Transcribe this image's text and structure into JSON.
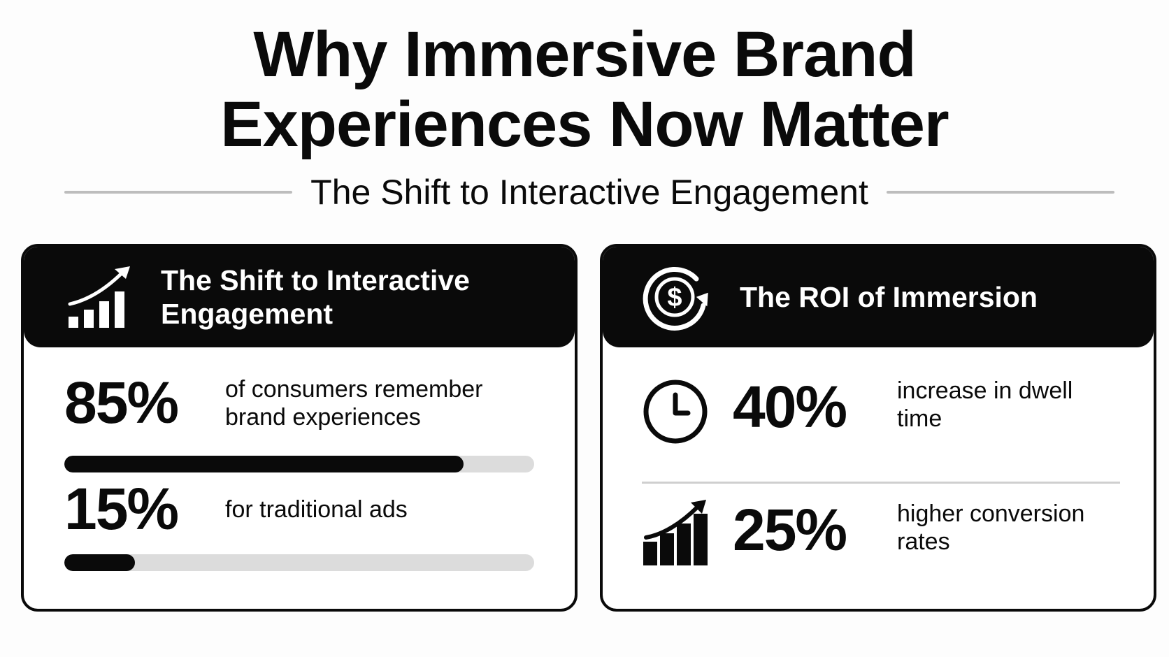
{
  "title": {
    "line1": "Why Immersive Brand",
    "line2": "Experiences Now Matter"
  },
  "subtitle": "The Shift to Interactive Engagement",
  "left_card": {
    "heading": "The Shift to Interactive Engagement",
    "icon": "bar-chart-trend-up-icon",
    "stats": [
      {
        "value": "85%",
        "description": "of consumers remember brand experiences",
        "bar_fraction": 0.85
      },
      {
        "value": "15%",
        "description": "for traditional ads",
        "bar_fraction": 0.15
      }
    ]
  },
  "right_card": {
    "heading": "The ROI of Immersion",
    "icon": "dollar-cycle-icon",
    "stats": [
      {
        "value": "40%",
        "description": "increase in dwell time",
        "icon": "clock-icon"
      },
      {
        "value": "25%",
        "description": "higher conversion rates",
        "icon": "bar-chart-growth-icon"
      }
    ]
  },
  "colors": {
    "ink": "#0a0a0a",
    "track": "#dcdcdc",
    "rule": "#bdbdbd",
    "background": "#fdfdfd"
  }
}
